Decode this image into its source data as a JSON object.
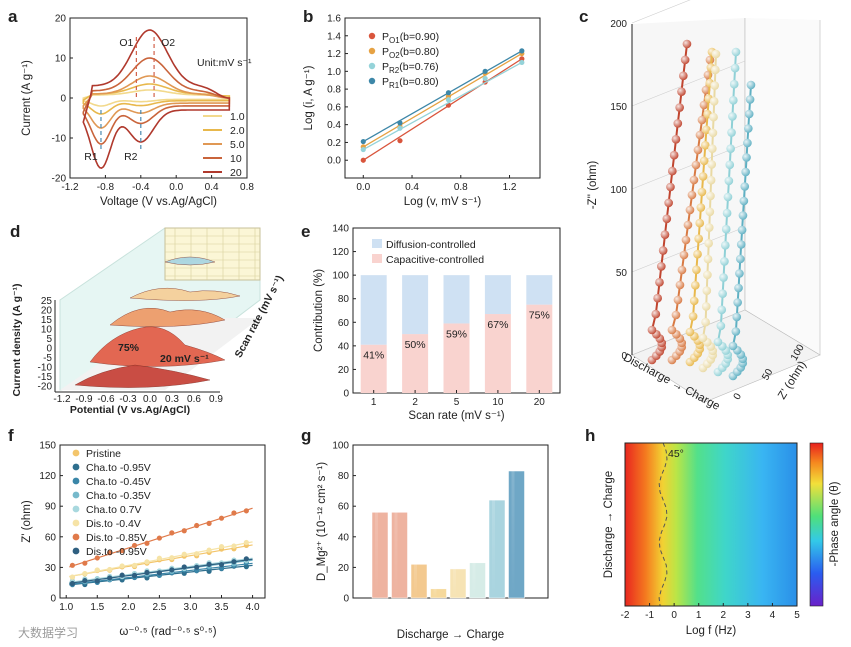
{
  "panel_letters": [
    "a",
    "b",
    "c",
    "d",
    "e",
    "f",
    "g",
    "h"
  ],
  "colors": {
    "c1": "#f2d98c",
    "c2": "#e8b84c",
    "c5": "#e09854",
    "c10": "#c9643b",
    "c20": "#b0392d",
    "bO1": "#d9553c",
    "bO2": "#e6a243",
    "bR2": "#95d3d9",
    "bR1": "#3d87a8",
    "diff": "#cfe1f3",
    "cap": "#f9d3cf"
  },
  "chart_data": [
    {
      "id": "a",
      "type": "line",
      "xlabel": "Voltage (V vs.Ag/AgCl)",
      "ylabel": "Current (A g⁻¹)",
      "xlim": [
        -1.2,
        0.8
      ],
      "ylim": [
        -20,
        20
      ],
      "xticks": [
        "-1.2",
        "-0.8",
        "-0.4",
        "0.0",
        "0.4",
        "0.8"
      ],
      "yticks": [
        "-20",
        "-10",
        "0",
        "10",
        "20"
      ],
      "legend_title": "Unit:mV s⁻¹",
      "series": [
        {
          "name": "1.0",
          "color": "#f2d98c",
          "anodic_peak": 1.5,
          "cathodic_peak": -2.0
        },
        {
          "name": "2.0",
          "color": "#e8b84c",
          "anodic_peak": 3.0,
          "cathodic_peak": -4.0
        },
        {
          "name": "5.0",
          "color": "#e09854",
          "anodic_peak": 5.5,
          "cathodic_peak": -7.5
        },
        {
          "name": "10",
          "color": "#c9643b",
          "anodic_peak": 10.0,
          "cathodic_peak": -11.5
        },
        {
          "name": "20",
          "color": "#b0392d",
          "anodic_peak": 17.0,
          "cathodic_peak": -17.5
        }
      ],
      "annotations": [
        {
          "label": "O1",
          "x": -0.45,
          "color": "#d2604a"
        },
        {
          "label": "O2",
          "x": -0.25,
          "color": "#d2604a"
        },
        {
          "label": "R1",
          "x": -0.85,
          "color": "#4a8ab0"
        },
        {
          "label": "R2",
          "x": -0.4,
          "color": "#4a8ab0"
        }
      ]
    },
    {
      "id": "b",
      "type": "scatter",
      "xlabel": "Log (v, mV s⁻¹)",
      "ylabel": "Log (i, A g⁻¹)",
      "xlim": [
        -0.15,
        1.45
      ],
      "ylim": [
        -0.2,
        1.6
      ],
      "xticks": [
        "0.0",
        "0.4",
        "0.8",
        "1.2"
      ],
      "yticks": [
        "0.0",
        "0.2",
        "0.4",
        "0.6",
        "0.8",
        "1.0",
        "1.2",
        "1.4",
        "1.6"
      ],
      "x": [
        0.0,
        0.301,
        0.699,
        1.0,
        1.301
      ],
      "series": [
        {
          "name": "P_O1(b=0.90)",
          "sub": "O1",
          "b": "(b=0.90)",
          "color": "#d9553c",
          "values": [
            0.0,
            0.22,
            0.62,
            0.88,
            1.14
          ]
        },
        {
          "name": "P_O2(b=0.80)",
          "sub": "O2",
          "b": "(b=0.80)",
          "color": "#e6a243",
          "values": [
            0.15,
            0.38,
            0.72,
            0.98,
            1.2
          ]
        },
        {
          "name": "P_R2(b=0.76)",
          "sub": "R2",
          "b": "(b=0.76)",
          "color": "#95d3d9",
          "values": [
            0.12,
            0.36,
            0.68,
            0.92,
            1.1
          ]
        },
        {
          "name": "P_R1(b=0.80)",
          "sub": "R1",
          "b": "(b=0.80)",
          "color": "#3d87a8",
          "values": [
            0.21,
            0.42,
            0.76,
            1.0,
            1.23
          ]
        }
      ]
    },
    {
      "id": "c",
      "type": "area",
      "xlabel": "Potential (V vs.Ag/AgCl)",
      "ylabel": "Current density (A g⁻¹)",
      "zlabel": "Scan rate (mV s⁻¹)",
      "xticks": [
        "-1.2",
        "-0.9",
        "-0.6",
        "-0.3",
        "0.0",
        "0.3",
        "0.6",
        "0.9"
      ],
      "yticks": [
        "25",
        "20",
        "15",
        "10",
        "5",
        "0",
        "-5",
        "-10",
        "-15",
        "-20"
      ],
      "annotations": [
        "75%",
        "20 mV s⁻¹"
      ]
    },
    {
      "id": "d",
      "type": "bar",
      "xlabel": "Scan rate (mV s⁻¹)",
      "ylabel": "Contribution (%)",
      "categories": [
        "1",
        "2",
        "5",
        "10",
        "20"
      ],
      "ylim": [
        0,
        140
      ],
      "yticks": [
        "0",
        "20",
        "40",
        "60",
        "80",
        "100",
        "120",
        "140"
      ],
      "series": [
        {
          "name": "Capacitive-controlled",
          "color": "#f9d3cf",
          "values": [
            41,
            50,
            59,
            67,
            75
          ]
        },
        {
          "name": "Diffusion-controlled",
          "color": "#cfe1f3",
          "values": [
            59,
            50,
            41,
            33,
            25
          ]
        }
      ],
      "labels": [
        "41%",
        "50%",
        "59%",
        "67%",
        "75%"
      ]
    },
    {
      "id": "e",
      "type": "scatter",
      "xlabel": "Discharge → Charge",
      "ylabel": "-Z'' (ohm)",
      "zlabel": "Z' (ohm)",
      "ylim": [
        0,
        200
      ],
      "yticks": [
        "0",
        "50",
        "100",
        "150",
        "200"
      ],
      "zticks": [
        "0",
        "50",
        "100"
      ],
      "series_colors": [
        "#c0452f",
        "#d87a44",
        "#e8b84c",
        "#e9d9a3",
        "#8fd0d6",
        "#5fb0c3"
      ]
    },
    {
      "id": "f",
      "type": "scatter",
      "xlabel": "ω⁻⁰·⁵ (rad⁻⁰·⁵ s⁰·⁵)",
      "ylabel": "Z' (ohm)",
      "xlim": [
        0.9,
        4.2
      ],
      "ylim": [
        0,
        150
      ],
      "xticks": [
        "1.0",
        "1.5",
        "2.0",
        "2.5",
        "3.0",
        "3.5",
        "4.0"
      ],
      "yticks": [
        "0",
        "30",
        "60",
        "90",
        "120",
        "150"
      ],
      "x": [
        1.1,
        1.3,
        1.5,
        1.7,
        1.9,
        2.1,
        2.3,
        2.5,
        2.7,
        2.9,
        3.1,
        3.3,
        3.5,
        3.7,
        3.9
      ],
      "series": [
        {
          "name": "Pristine",
          "color": "#f3c56b",
          "intercept": 10,
          "slope": 10.5
        },
        {
          "name": "Cha.to -0.95V",
          "color": "#2e6f8e",
          "intercept": 6,
          "slope": 6.5
        },
        {
          "name": "Cha.to -0.45V",
          "color": "#3a86a8",
          "intercept": 6,
          "slope": 7.0
        },
        {
          "name": "Cha.to -0.35V",
          "color": "#76b9cb",
          "intercept": 7,
          "slope": 7.5
        },
        {
          "name": "Cha.to  0.7V",
          "color": "#a8d8de",
          "intercept": 7,
          "slope": 8.0
        },
        {
          "name": "Dis.to -0.4V",
          "color": "#f6e3a6",
          "intercept": 9,
          "slope": 11.5
        },
        {
          "name": "Dis.to -0.85V",
          "color": "#e07a4a",
          "intercept": 10,
          "slope": 19.5
        },
        {
          "name": "Dis.to -0.95V",
          "color": "#2f5f80",
          "intercept": 6,
          "slope": 8.0
        }
      ]
    },
    {
      "id": "g",
      "type": "bar",
      "xlabel": "Discharge → Charge",
      "ylabel": "D_Mg²⁺ (10⁻¹² cm² s⁻¹)",
      "ylim": [
        0,
        100
      ],
      "yticks": [
        "0",
        "20",
        "40",
        "60",
        "80",
        "100"
      ],
      "values": [
        56,
        56,
        22,
        6,
        19,
        23,
        64,
        83
      ],
      "colors": [
        "#eeb3a0",
        "#eeb3a0",
        "#f3c98f",
        "#f6d99c",
        "#f6e3b4",
        "#d6ece7",
        "#a9d4df",
        "#6fa7c6"
      ]
    },
    {
      "id": "h",
      "type": "heatmap",
      "xlabel": "Log f (Hz)",
      "ylabel": "Discharge → Charge",
      "colorbar_label": "-Phase angle (θ)",
      "xlim": [
        -2,
        5
      ],
      "xticks": [
        "-2",
        "-1",
        "0",
        "1",
        "2",
        "3",
        "4",
        "5"
      ],
      "annotation": "45°"
    }
  ],
  "watermark": "大数据学习"
}
